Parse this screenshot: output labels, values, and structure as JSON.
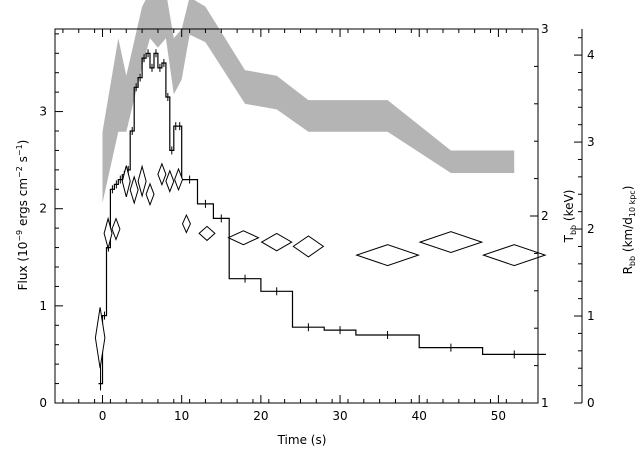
{
  "chart_data": {
    "type": "line",
    "axes": {
      "x": {
        "label": "Time (s)",
        "range": [
          -6,
          55
        ],
        "ticks": [
          0,
          10,
          20,
          30,
          40,
          50
        ]
      },
      "y_flux": {
        "range": [
          0,
          3.85
        ],
        "ticks": [
          0,
          1,
          2,
          3
        ]
      },
      "y_temp": {
        "range": [
          1,
          3
        ],
        "ticks": [
          1,
          2,
          3
        ]
      },
      "y_radius": {
        "range": [
          0,
          4.3
        ],
        "ticks": [
          0,
          1,
          2,
          3,
          4
        ]
      }
    },
    "labels": {
      "flux": {
        "pre": "Flux (10",
        "sup1": "−9",
        "mid": " ergs cm",
        "sup2": "−2",
        "mid2": " s",
        "sup3": "−1",
        "post": ")"
      },
      "temp": {
        "pre": "T",
        "sub": "bb",
        "post": " (keV)"
      },
      "radius": {
        "pre": "R",
        "sub1": "bb",
        "mid": " (km/d",
        "sub2": "10 kpc",
        "post": ")"
      }
    },
    "flux_series": {
      "style": "histogram",
      "bins": [
        [
          -0.5,
          0.0,
          0.2
        ],
        [
          0.0,
          0.5,
          0.9
        ],
        [
          0.5,
          1.0,
          1.6
        ],
        [
          1.0,
          1.5,
          2.2
        ],
        [
          1.5,
          2.0,
          2.25
        ],
        [
          2.0,
          2.5,
          2.3
        ],
        [
          2.5,
          3.0,
          2.35
        ],
        [
          3.0,
          3.5,
          2.4
        ],
        [
          3.5,
          4.0,
          2.8
        ],
        [
          4.0,
          4.5,
          3.25
        ],
        [
          4.5,
          5.0,
          3.35
        ],
        [
          5.0,
          5.5,
          3.55
        ],
        [
          5.5,
          6.0,
          3.6
        ],
        [
          6.0,
          6.5,
          3.45
        ],
        [
          6.5,
          7.0,
          3.6
        ],
        [
          7.0,
          7.5,
          3.45
        ],
        [
          7.5,
          8.0,
          3.5
        ],
        [
          8.0,
          8.5,
          3.15
        ],
        [
          8.5,
          9.0,
          2.6
        ],
        [
          9.0,
          9.5,
          2.85
        ],
        [
          9.5,
          10.0,
          2.85
        ],
        [
          10.0,
          12.0,
          2.3
        ],
        [
          12.0,
          14.0,
          2.05
        ],
        [
          14.0,
          16.0,
          1.9
        ],
        [
          16.0,
          20.0,
          1.28
        ],
        [
          20.0,
          24.0,
          1.15
        ],
        [
          24.0,
          28.0,
          0.78
        ],
        [
          28.0,
          32.0,
          0.75
        ],
        [
          32.0,
          40.0,
          0.7
        ],
        [
          40.0,
          48.0,
          0.57
        ],
        [
          48.0,
          56.0,
          0.5
        ]
      ],
      "first_point_error": [
        0.13,
        0.38
      ]
    },
    "temperature_band": {
      "description": "Shaded 1-sigma band of blackbody temperature T_bb (keV)",
      "points": [
        [
          0.0,
          2.07,
          2.45
        ],
        [
          2.0,
          2.45,
          2.95
        ],
        [
          3.0,
          2.45,
          2.75
        ],
        [
          5.0,
          2.8,
          3.12
        ],
        [
          6.0,
          2.95,
          3.2
        ],
        [
          7.0,
          2.9,
          3.18
        ],
        [
          8.0,
          2.95,
          3.2
        ],
        [
          9.0,
          2.65,
          2.95
        ],
        [
          10.0,
          2.73,
          3.0
        ],
        [
          11.0,
          2.97,
          3.17
        ],
        [
          13.0,
          2.93,
          3.12
        ],
        [
          18.0,
          2.6,
          2.78
        ],
        [
          22.0,
          2.57,
          2.75
        ],
        [
          26.0,
          2.45,
          2.62
        ],
        [
          36.0,
          2.45,
          2.62
        ],
        [
          44.0,
          2.23,
          2.35
        ],
        [
          52.0,
          2.23,
          2.35
        ]
      ]
    },
    "radius_diamonds": {
      "description": "Blackbody radius R_bb (km/d_10kpc), diamond error boxes [x, y, xerr, yerr]",
      "points": [
        [
          -0.3,
          0.75,
          0.6,
          0.35
        ],
        [
          0.7,
          1.95,
          0.5,
          0.17
        ],
        [
          1.7,
          2.0,
          0.5,
          0.12
        ],
        [
          3.0,
          2.55,
          0.5,
          0.18
        ],
        [
          4.0,
          2.45,
          0.5,
          0.15
        ],
        [
          5.0,
          2.55,
          0.5,
          0.17
        ],
        [
          6.0,
          2.4,
          0.5,
          0.12
        ],
        [
          7.5,
          2.63,
          0.5,
          0.12
        ],
        [
          8.5,
          2.55,
          0.5,
          0.12
        ],
        [
          9.6,
          2.57,
          0.5,
          0.12
        ],
        [
          10.6,
          2.06,
          0.5,
          0.1
        ],
        [
          13.2,
          1.95,
          1.0,
          0.08
        ],
        [
          17.8,
          1.9,
          1.9,
          0.08
        ],
        [
          22.0,
          1.85,
          1.9,
          0.1
        ],
        [
          26.0,
          1.8,
          1.9,
          0.12
        ],
        [
          36.0,
          1.7,
          3.9,
          0.12
        ],
        [
          44.0,
          1.85,
          3.9,
          0.12
        ],
        [
          52.0,
          1.7,
          3.9,
          0.12
        ]
      ]
    }
  }
}
